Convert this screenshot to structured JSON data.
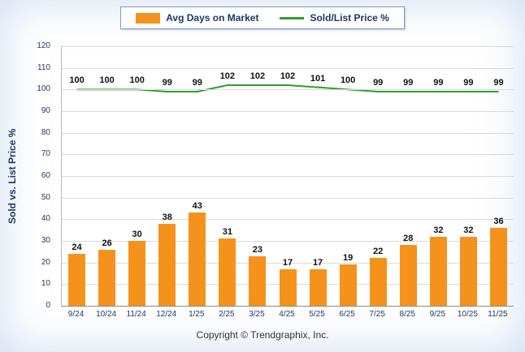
{
  "legend": {
    "items": [
      {
        "label": "Avg Days on Market",
        "type": "bar",
        "color": "#F5921B"
      },
      {
        "label": "Sold/List Price %",
        "type": "line",
        "color": "#2E9E2E"
      }
    ]
  },
  "footer": {
    "text": "Copyright © Trendgraphix, Inc."
  },
  "chart_data": {
    "type": "bar+line",
    "categories": [
      "9/24",
      "10/24",
      "11/24",
      "12/24",
      "1/25",
      "2/25",
      "3/25",
      "4/25",
      "5/25",
      "6/25",
      "7/25",
      "8/25",
      "9/25",
      "10/25",
      "11/25"
    ],
    "series": [
      {
        "name": "Avg Days on Market",
        "type": "bar",
        "color": "#F5921B",
        "values": [
          24,
          26,
          30,
          38,
          43,
          31,
          23,
          17,
          17,
          19,
          22,
          28,
          32,
          32,
          36
        ]
      },
      {
        "name": "Sold/List Price %",
        "type": "line",
        "color": "#2E9E2E",
        "values": [
          100,
          100,
          100,
          99,
          99,
          102,
          102,
          102,
          101,
          100,
          99,
          99,
          99,
          99,
          99
        ]
      }
    ],
    "ylabel": "Sold vs. List Price %",
    "ylim": [
      0,
      120
    ],
    "ytick_step": 10,
    "grid": true,
    "legend_position": "top"
  }
}
